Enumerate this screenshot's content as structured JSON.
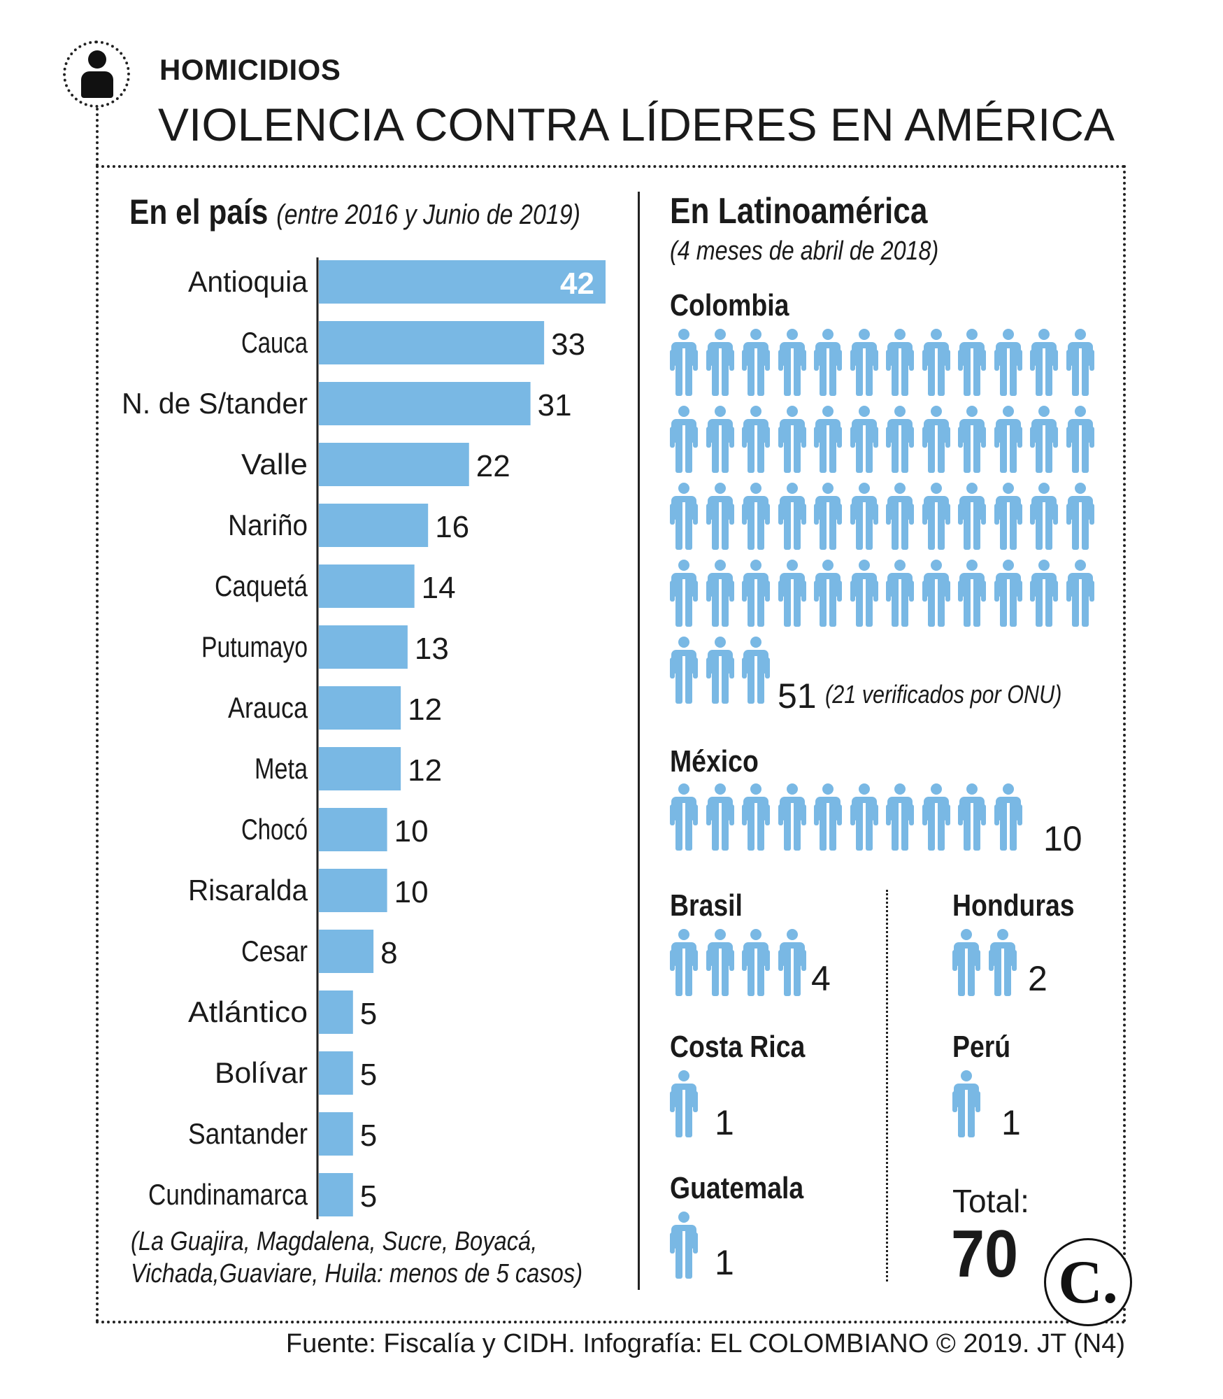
{
  "header": {
    "kicker": "HOMICIDIOS",
    "title": "VIOLENCIA CONTRA LÍDERES EN AMÉRICA"
  },
  "left": {
    "title": "En el país",
    "subtitle": "(entre 2016 y Junio de 2019)",
    "footnote_line1": "(La Guajira, Magdalena, Sucre, Boyacá,",
    "footnote_line2": "Vichada,Guaviare, Huila: menos de 5 casos)"
  },
  "right": {
    "title": "En Latinoamérica",
    "subtitle": "(4 meses de abril de 2018)",
    "colombia_note": "(21 verificados por ONU)",
    "total_label": "Total:",
    "total_value": "70"
  },
  "logo": {
    "letter": "C."
  },
  "source": "Fuente: Fiscalía y CIDH. Infografía: EL COLOMBIANO © 2019. JT (N4)",
  "colors": {
    "bar": "#79b8e4",
    "icon": "#79b8e4",
    "text": "#1a1a1a"
  },
  "chart_data": [
    {
      "type": "bar",
      "orientation": "horizontal",
      "categories": [
        "Antioquia",
        "Cauca",
        "N. de S/tander",
        "Valle",
        "Nariño",
        "Caquetá",
        "Putumayo",
        "Arauca",
        "Meta",
        "Chocó",
        "Risaralda",
        "Cesar",
        "Atlántico",
        "Bolívar",
        "Santander",
        "Cundinamarca"
      ],
      "values": [
        42,
        33,
        31,
        22,
        16,
        14,
        13,
        12,
        12,
        10,
        10,
        8,
        5,
        5,
        5,
        5
      ],
      "xlim": [
        0,
        42
      ],
      "grid": false,
      "legend": "none"
    },
    {
      "type": "pictogram",
      "unit": "person-icon",
      "categories": [
        "Colombia",
        "México",
        "Brasil",
        "Honduras",
        "Costa Rica",
        "Perú",
        "Guatemala"
      ],
      "values": [
        51,
        10,
        4,
        2,
        1,
        1,
        1
      ],
      "total": 70
    }
  ]
}
